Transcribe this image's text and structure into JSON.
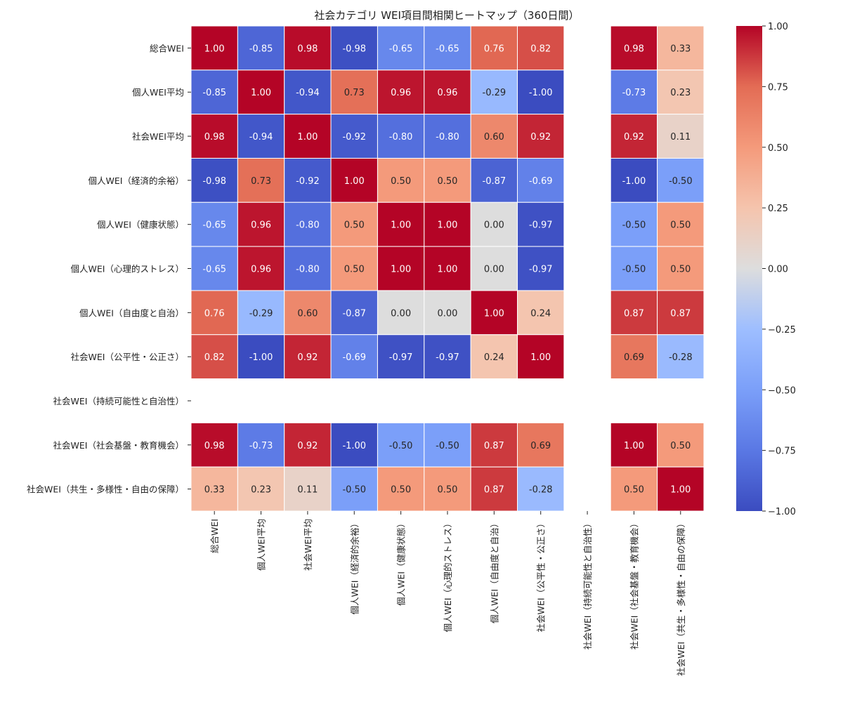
{
  "chart_data": {
    "type": "heatmap",
    "title": "社会カテゴリ WEI項目間相関ヒートマップ（360日間）",
    "row_labels": [
      "総合WEI",
      "個人WEI平均",
      "社会WEI平均",
      "個人WEI（経済的余裕）",
      "個人WEI（健康状態）",
      "個人WEI（心理的ストレス）",
      "個人WEI（自由度と自治）",
      "社会WEI（公平性・公正さ）",
      "社会WEI（持続可能性と自治性）",
      "社会WEI（社会基盤・教育機会）",
      "社会WEI（共生・多様性・自由の保障）"
    ],
    "col_labels": [
      "総合WEI",
      "個人WEI平均",
      "社会WEI平均",
      "個人WEI（経済的余裕）",
      "個人WEI（健康状態）",
      "個人WEI（心理的ストレス）",
      "個人WEI（自由度と自治）",
      "社会WEI（公平性・公正さ）",
      "社会WEI（持続可能性と自治性）",
      "社会WEI（社会基盤・教育機会）",
      "社会WEI（共生・多様性・自由の保障）"
    ],
    "values": [
      [
        1.0,
        -0.85,
        0.98,
        -0.98,
        -0.65,
        -0.65,
        0.76,
        0.82,
        null,
        0.98,
        0.33
      ],
      [
        -0.85,
        1.0,
        -0.94,
        0.73,
        0.96,
        0.96,
        -0.29,
        -1.0,
        null,
        -0.73,
        0.23
      ],
      [
        0.98,
        -0.94,
        1.0,
        -0.92,
        -0.8,
        -0.8,
        0.6,
        0.92,
        null,
        0.92,
        0.11
      ],
      [
        -0.98,
        0.73,
        -0.92,
        1.0,
        0.5,
        0.5,
        -0.87,
        -0.69,
        null,
        -1.0,
        -0.5
      ],
      [
        -0.65,
        0.96,
        -0.8,
        0.5,
        1.0,
        1.0,
        0.0,
        -0.97,
        null,
        -0.5,
        0.5
      ],
      [
        -0.65,
        0.96,
        -0.8,
        0.5,
        1.0,
        1.0,
        0.0,
        -0.97,
        null,
        -0.5,
        0.5
      ],
      [
        0.76,
        -0.29,
        0.6,
        -0.87,
        0.0,
        0.0,
        1.0,
        0.24,
        null,
        0.87,
        0.87
      ],
      [
        0.82,
        -1.0,
        0.92,
        -0.69,
        -0.97,
        -0.97,
        0.24,
        1.0,
        null,
        0.69,
        -0.28
      ],
      [
        null,
        null,
        null,
        null,
        null,
        null,
        null,
        null,
        null,
        null,
        null
      ],
      [
        0.98,
        -0.73,
        0.92,
        -1.0,
        -0.5,
        -0.5,
        0.87,
        0.69,
        null,
        1.0,
        0.5
      ],
      [
        0.33,
        0.23,
        0.11,
        -0.5,
        0.5,
        0.5,
        0.87,
        -0.28,
        null,
        0.5,
        1.0
      ]
    ],
    "value_format": "0.00",
    "colormap": "coolwarm",
    "vmin": -1.0,
    "vmax": 1.0,
    "colorbar_ticks": [
      1.0,
      0.75,
      0.5,
      0.25,
      0.0,
      -0.25,
      -0.5,
      -0.75,
      -1.0
    ],
    "colorbar_tick_labels": [
      "1.00",
      "0.75",
      "0.50",
      "0.25",
      "0.00",
      "−0.25",
      "−0.50",
      "−0.75",
      "−1.00"
    ],
    "legend_position": "right"
  }
}
